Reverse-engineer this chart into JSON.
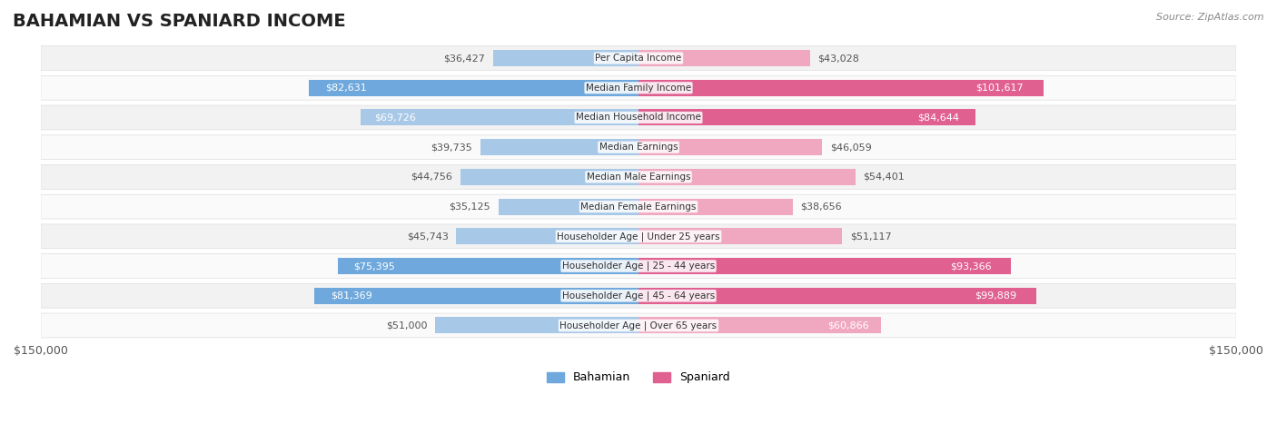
{
  "title": "BAHAMIAN VS SPANIARD INCOME",
  "source": "Source: ZipAtlas.com",
  "categories": [
    "Per Capita Income",
    "Median Family Income",
    "Median Household Income",
    "Median Earnings",
    "Median Male Earnings",
    "Median Female Earnings",
    "Householder Age | Under 25 years",
    "Householder Age | 25 - 44 years",
    "Householder Age | 45 - 64 years",
    "Householder Age | Over 65 years"
  ],
  "bahamian": [
    36427,
    82631,
    69726,
    39735,
    44756,
    35125,
    45743,
    75395,
    81369,
    51000
  ],
  "spaniard": [
    43028,
    101617,
    84644,
    46059,
    54401,
    38656,
    51117,
    93366,
    99889,
    60866
  ],
  "bahamian_color_strong": "#6FA8DC",
  "bahamian_color_light": "#A8C8E8",
  "spaniard_color_strong": "#E06090",
  "spaniard_color_light": "#F0A8C0",
  "max_value": 150000,
  "bahamian_label": "Bahamian",
  "spaniard_label": "Spaniard",
  "bg_row_color": "#F0F0F0",
  "bg_color": "#FFFFFF",
  "title_fontsize": 14,
  "label_fontsize": 8.5,
  "value_fontsize": 8.0
}
